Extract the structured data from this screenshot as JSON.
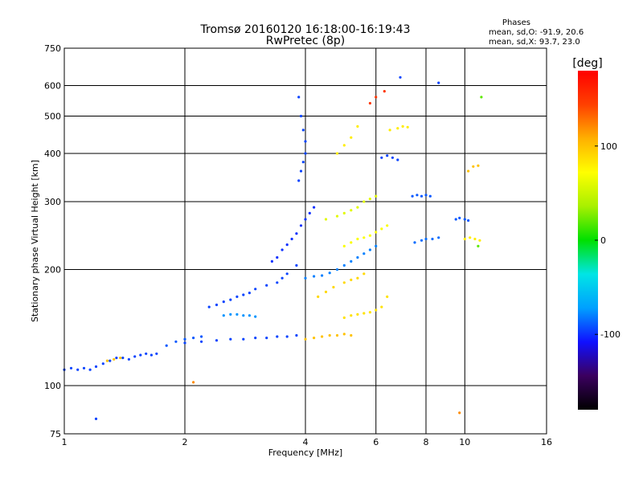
{
  "chart_data": {
    "type": "scatter",
    "title": "Tromsø 20160120 16:18:00-16:19:43",
    "subtitle": "RwPretec (8p)",
    "xlabel": "Frequency [MHz]",
    "ylabel": "Stationary phase Virtual Height [km]",
    "xscale": "log",
    "yscale": "log",
    "xlim": [
      1,
      16
    ],
    "ylim": [
      75,
      750
    ],
    "xticks": [
      1,
      2,
      4,
      6,
      8,
      10,
      16
    ],
    "yticks": [
      75,
      100,
      200,
      300,
      400,
      500,
      600,
      750
    ],
    "grid": true,
    "stats": {
      "heading": "Phases",
      "line_o": "mean, sd,O: -91.9, 20.6",
      "line_x": "mean, sd,X:  93.7, 23.0"
    },
    "colorbar": {
      "label": "[deg]",
      "min": -180,
      "max": 180,
      "ticks": [
        100,
        0,
        -100
      ],
      "colors": [
        "#000000",
        "#3b005f",
        "#1010ff",
        "#00a0ff",
        "#00e5e5",
        "#00e000",
        "#a8f000",
        "#ffff00",
        "#ffb000",
        "#ff4000",
        "#ff0000"
      ]
    },
    "series": [
      {
        "phase": -95,
        "points": [
          [
            1.0,
            110
          ],
          [
            1.04,
            111
          ],
          [
            1.08,
            110
          ],
          [
            1.12,
            111
          ],
          [
            1.16,
            110
          ],
          [
            1.2,
            112
          ],
          [
            1.25,
            114
          ],
          [
            1.3,
            116
          ],
          [
            1.35,
            118
          ],
          [
            1.4,
            118
          ],
          [
            1.45,
            117
          ],
          [
            1.5,
            119
          ],
          [
            1.55,
            120
          ],
          [
            1.6,
            121
          ],
          [
            1.65,
            120
          ],
          [
            1.7,
            121
          ]
        ]
      },
      {
        "phase": 100,
        "points": [
          [
            1.28,
            116
          ],
          [
            1.33,
            117
          ],
          [
            1.38,
            118
          ]
        ]
      },
      {
        "phase": -90,
        "points": [
          [
            1.8,
            127
          ],
          [
            1.9,
            130
          ],
          [
            2.0,
            132
          ],
          [
            2.1,
            133
          ],
          [
            2.2,
            134
          ]
        ]
      },
      {
        "phase": -95,
        "points": [
          [
            2.0,
            129
          ],
          [
            2.2,
            130
          ],
          [
            2.4,
            131
          ],
          [
            2.6,
            132
          ],
          [
            2.8,
            132
          ],
          [
            3.0,
            133
          ],
          [
            3.2,
            133
          ],
          [
            3.4,
            134
          ],
          [
            3.6,
            134
          ],
          [
            3.8,
            135
          ]
        ]
      },
      {
        "phase": -75,
        "points": [
          [
            2.5,
            152
          ],
          [
            2.6,
            153
          ],
          [
            2.7,
            153
          ],
          [
            2.8,
            152
          ],
          [
            2.9,
            152
          ],
          [
            3.0,
            151
          ]
        ]
      },
      {
        "phase": -95,
        "points": [
          [
            2.3,
            160
          ],
          [
            2.4,
            162
          ],
          [
            2.5,
            165
          ],
          [
            2.6,
            167
          ],
          [
            2.7,
            170
          ],
          [
            2.8,
            172
          ],
          [
            2.9,
            174
          ],
          [
            3.0,
            178
          ],
          [
            3.2,
            182
          ],
          [
            3.4,
            185
          ],
          [
            3.5,
            190
          ],
          [
            3.6,
            195
          ],
          [
            3.8,
            205
          ]
        ]
      },
      {
        "phase": -100,
        "points": [
          [
            3.3,
            210
          ],
          [
            3.4,
            215
          ],
          [
            3.5,
            225
          ],
          [
            3.6,
            232
          ],
          [
            3.7,
            240
          ],
          [
            3.8,
            248
          ],
          [
            3.9,
            260
          ],
          [
            4.0,
            270
          ],
          [
            4.1,
            280
          ],
          [
            4.2,
            290
          ]
        ]
      },
      {
        "phase": -95,
        "points": [
          [
            3.85,
            340
          ],
          [
            3.9,
            360
          ],
          [
            3.95,
            380
          ],
          [
            4.0,
            400
          ],
          [
            4.0,
            430
          ],
          [
            3.95,
            460
          ],
          [
            3.9,
            500
          ],
          [
            3.85,
            560
          ]
        ]
      },
      {
        "phase": 100,
        "points": [
          [
            4.0,
            132
          ],
          [
            4.2,
            133
          ],
          [
            4.4,
            134
          ],
          [
            4.6,
            135
          ],
          [
            4.8,
            135
          ],
          [
            5.0,
            136
          ],
          [
            5.2,
            135
          ]
        ]
      },
      {
        "phase": 90,
        "points": [
          [
            4.3,
            170
          ],
          [
            4.5,
            175
          ],
          [
            4.7,
            180
          ],
          [
            5.0,
            185
          ],
          [
            5.2,
            188
          ],
          [
            5.4,
            190
          ],
          [
            5.6,
            195
          ]
        ]
      },
      {
        "phase": 85,
        "points": [
          [
            5.0,
            150
          ],
          [
            5.2,
            152
          ],
          [
            5.4,
            153
          ],
          [
            5.6,
            154
          ],
          [
            5.8,
            155
          ],
          [
            6.0,
            157
          ],
          [
            6.2,
            160
          ],
          [
            6.4,
            170
          ]
        ]
      },
      {
        "phase": 70,
        "points": [
          [
            5.0,
            230
          ],
          [
            5.2,
            235
          ],
          [
            5.4,
            240
          ],
          [
            5.6,
            242
          ],
          [
            5.8,
            245
          ],
          [
            6.0,
            250
          ],
          [
            6.2,
            255
          ],
          [
            6.4,
            260
          ]
        ]
      },
      {
        "phase": -80,
        "points": [
          [
            4.0,
            190
          ],
          [
            4.2,
            192
          ],
          [
            4.4,
            193
          ],
          [
            4.6,
            196
          ],
          [
            4.8,
            200
          ],
          [
            5.0,
            205
          ],
          [
            5.2,
            210
          ],
          [
            5.4,
            215
          ],
          [
            5.6,
            220
          ],
          [
            5.8,
            225
          ],
          [
            6.0,
            230
          ]
        ]
      },
      {
        "phase": 60,
        "points": [
          [
            4.5,
            270
          ],
          [
            4.8,
            275
          ],
          [
            5.0,
            280
          ],
          [
            5.2,
            285
          ],
          [
            5.4,
            290
          ],
          [
            5.6,
            300
          ],
          [
            5.8,
            305
          ],
          [
            6.0,
            310
          ]
        ]
      },
      {
        "phase": 80,
        "points": [
          [
            4.8,
            400
          ],
          [
            5.0,
            420
          ],
          [
            5.2,
            440
          ],
          [
            5.4,
            470
          ]
        ]
      },
      {
        "phase": -95,
        "points": [
          [
            6.2,
            390
          ],
          [
            6.4,
            395
          ],
          [
            6.6,
            390
          ],
          [
            6.8,
            385
          ]
        ]
      },
      {
        "phase": -90,
        "points": [
          [
            7.4,
            310
          ],
          [
            7.6,
            312
          ],
          [
            7.8,
            310
          ],
          [
            8.0,
            312
          ],
          [
            8.2,
            310
          ]
        ]
      },
      {
        "phase": -85,
        "points": [
          [
            7.5,
            235
          ],
          [
            7.8,
            238
          ],
          [
            8.0,
            240
          ],
          [
            8.3,
            240
          ],
          [
            8.6,
            242
          ]
        ]
      },
      {
        "phase": 80,
        "points": [
          [
            6.5,
            460
          ],
          [
            6.8,
            465
          ],
          [
            7.0,
            470
          ],
          [
            7.2,
            468
          ]
        ]
      },
      {
        "phase": 150,
        "points": [
          [
            6.0,
            560
          ],
          [
            6.3,
            580
          ],
          [
            5.8,
            540
          ]
        ]
      },
      {
        "phase": -90,
        "points": [
          [
            9.5,
            270
          ],
          [
            9.7,
            272
          ],
          [
            10.0,
            270
          ],
          [
            10.2,
            268
          ]
        ]
      },
      {
        "phase": 80,
        "points": [
          [
            10.0,
            240
          ],
          [
            10.3,
            242
          ],
          [
            10.6,
            240
          ],
          [
            10.9,
            238
          ]
        ]
      },
      {
        "phase": 100,
        "points": [
          [
            10.2,
            360
          ],
          [
            10.5,
            370
          ],
          [
            10.8,
            372
          ]
        ]
      },
      {
        "phase": -95,
        "points": [
          [
            1.2,
            82
          ],
          [
            6.9,
            630
          ],
          [
            8.6,
            610
          ]
        ]
      },
      {
        "phase": 120,
        "points": [
          [
            9.7,
            85
          ],
          [
            2.1,
            102
          ]
        ]
      },
      {
        "phase": 20,
        "points": [
          [
            11.0,
            560
          ],
          [
            10.8,
            230
          ]
        ]
      }
    ]
  }
}
